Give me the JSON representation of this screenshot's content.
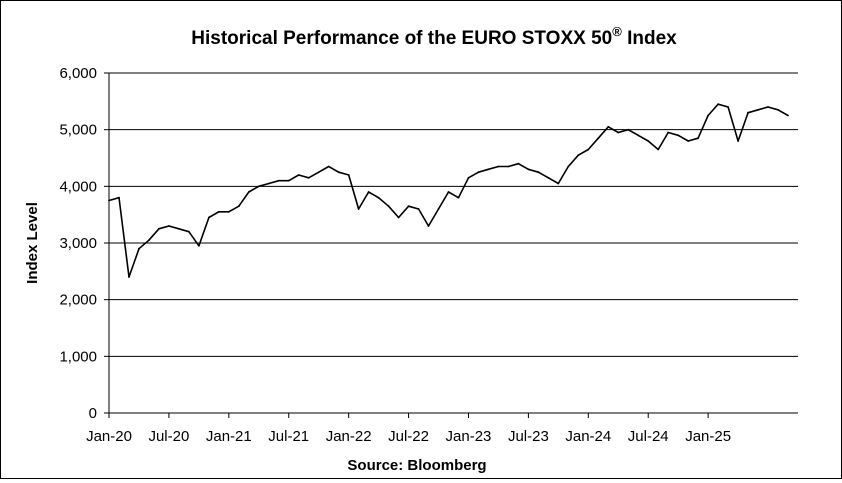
{
  "chart_data": {
    "type": "line",
    "title": "Historical  Performance  of the EURO STOXX 50",
    "title_sup": "®",
    "title_suffix": " Index",
    "xlabel": "Source: Bloomberg",
    "ylabel": "Index Level",
    "ylim": [
      0,
      6000
    ],
    "y_ticks": [
      0,
      1000,
      2000,
      3000,
      4000,
      5000,
      6000
    ],
    "y_tick_labels": [
      "0",
      "1,000",
      "2,000",
      "3,000",
      "4,000",
      "5,000",
      "6,000"
    ],
    "x_tick_labels": [
      "Jan-20",
      "Jul-20",
      "Jan-21",
      "Jul-21",
      "Jan-22",
      "Jul-22",
      "Jan-23",
      "Jul-23",
      "Jan-24",
      "Jul-24",
      "Jan-25"
    ],
    "grid": true,
    "legend": "none",
    "colors": {
      "line": "#000000",
      "grid": "#000000"
    },
    "series": [
      {
        "x": [
          "2020-01",
          "2020-02",
          "2020-03",
          "2020-04",
          "2020-05",
          "2020-06",
          "2020-07",
          "2020-08",
          "2020-09",
          "2020-10",
          "2020-11",
          "2020-12",
          "2021-01",
          "2021-02",
          "2021-03",
          "2021-04",
          "2021-05",
          "2021-06",
          "2021-07",
          "2021-08",
          "2021-09",
          "2021-10",
          "2021-11",
          "2021-12",
          "2022-01",
          "2022-02",
          "2022-03",
          "2022-04",
          "2022-05",
          "2022-06",
          "2022-07",
          "2022-08",
          "2022-09",
          "2022-10",
          "2022-11",
          "2022-12",
          "2023-01",
          "2023-02",
          "2023-03",
          "2023-04",
          "2023-05",
          "2023-06",
          "2023-07",
          "2023-08",
          "2023-09",
          "2023-10",
          "2023-11",
          "2023-12",
          "2024-01",
          "2024-02",
          "2024-03",
          "2024-04",
          "2024-05",
          "2024-06",
          "2024-07",
          "2024-08",
          "2024-09",
          "2024-10",
          "2024-11",
          "2024-12",
          "2025-01",
          "2025-02",
          "2025-03",
          "2025-04",
          "2025-05",
          "2025-06",
          "2025-07",
          "2025-08",
          "2025-09"
        ],
        "values": [
          3750,
          3800,
          2400,
          2900,
          3050,
          3250,
          3300,
          3250,
          3200,
          2950,
          3450,
          3550,
          3550,
          3650,
          3900,
          4000,
          4050,
          4100,
          4100,
          4200,
          4150,
          4250,
          4350,
          4250,
          4200,
          3600,
          3900,
          3800,
          3650,
          3450,
          3650,
          3600,
          3300,
          3600,
          3900,
          3800,
          4150,
          4250,
          4300,
          4350,
          4350,
          4400,
          4300,
          4250,
          4150,
          4050,
          4350,
          4550,
          4650,
          4850,
          5050,
          4950,
          5000,
          4900,
          4800,
          4650,
          4950,
          4900,
          4800,
          4850,
          5250,
          5450,
          5400,
          4800,
          5300,
          5350,
          5400,
          5350,
          5250
        ]
      }
    ]
  }
}
